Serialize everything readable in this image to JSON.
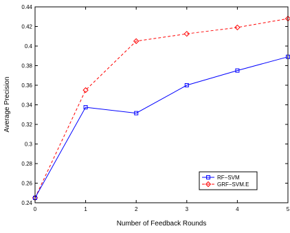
{
  "chart_data": {
    "type": "line",
    "title": "",
    "xlabel": "Number of Feedback Rounds",
    "ylabel": "Average Precision",
    "x": [
      0,
      1,
      2,
      3,
      4,
      5
    ],
    "xlim": [
      0,
      5
    ],
    "ylim": [
      0.24,
      0.44
    ],
    "xticks": [
      "0",
      "1",
      "2",
      "3",
      "4",
      "5"
    ],
    "yticks": [
      "0.24",
      "0.26",
      "0.28",
      "0.3",
      "0.32",
      "0.34",
      "0.36",
      "0.38",
      "0.4",
      "0.42",
      "0.44"
    ],
    "grid": false,
    "legend_position": "lower-right",
    "series": [
      {
        "name": "RF−SVM",
        "values": [
          0.245,
          0.3375,
          0.3315,
          0.36,
          0.375,
          0.389
        ],
        "color": "#0000ff",
        "line_style": "solid",
        "marker": "square"
      },
      {
        "name": "GRF−SVM.E",
        "values": [
          0.245,
          0.355,
          0.405,
          0.4125,
          0.419,
          0.428
        ],
        "color": "#ff0000",
        "line_style": "dashed",
        "marker": "diamond"
      }
    ]
  }
}
